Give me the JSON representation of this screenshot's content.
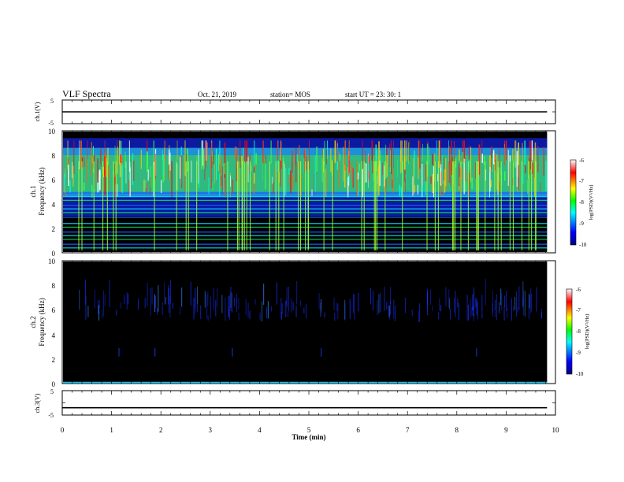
{
  "header": {
    "title": "VLF Spectra",
    "date": "Oct. 21, 2019",
    "station": "station= MOS",
    "start": "start  UT  =   23: 30: 1"
  },
  "chart_data": [
    {
      "type": "line",
      "panel": "ch1-voltage",
      "ylabel": "ch.1(V)",
      "yticks": [
        "5",
        "0",
        "-5"
      ],
      "ylim": [
        -5,
        5
      ],
      "x": [
        0,
        9.83
      ],
      "values": [
        0,
        0
      ]
    },
    {
      "type": "heatmap",
      "panel": "ch1-spectrogram",
      "ylabel": "ch.1 Frequency (kHz)",
      "ylabel_lines": [
        "ch.1",
        "Frequency (kHz)"
      ],
      "yticks": [
        "10",
        "8",
        "6",
        "4",
        "2",
        "0"
      ],
      "ylim": [
        0,
        10
      ],
      "xlim": [
        0,
        9.83
      ],
      "colorbar": {
        "label": "log(PSD)(V²/Hz)",
        "ticks": [
          "-6",
          "-7",
          "-8",
          "-9",
          "-10"
        ],
        "range": [
          -10,
          -6
        ],
        "colors": [
          "#000080",
          "#0000ff",
          "#00ffff",
          "#00ff00",
          "#ffff00",
          "#ff0000",
          "#ffffff"
        ]
      }
    },
    {
      "type": "heatmap",
      "panel": "ch2-spectrogram",
      "ylabel": "ch.2 Frequency (kHz)",
      "ylabel_lines": [
        "ch.2",
        "Frequency (kHz)"
      ],
      "yticks": [
        "10",
        "8",
        "6",
        "4",
        "2",
        "0"
      ],
      "ylim": [
        0,
        10
      ],
      "xlim": [
        0,
        9.83
      ],
      "colorbar": {
        "label": "log(PSD)(V²/Hz)",
        "ticks": [
          "-6",
          "-7",
          "-8",
          "-9",
          "-10"
        ],
        "range": [
          -10,
          -6
        ]
      }
    },
    {
      "type": "line",
      "panel": "ch3-voltage",
      "ylabel": "ch.3(V)",
      "yticks": [
        "5",
        "0",
        "-5"
      ],
      "ylim": [
        -5,
        5
      ],
      "x": [
        0,
        9.83
      ],
      "values": [
        -2,
        -2
      ]
    }
  ],
  "xaxis": {
    "label": "Time (min)",
    "ticks": [
      "0",
      "1",
      "2",
      "3",
      "4",
      "5",
      "6",
      "7",
      "8",
      "9",
      "10"
    ],
    "xlim": [
      0,
      10
    ]
  }
}
